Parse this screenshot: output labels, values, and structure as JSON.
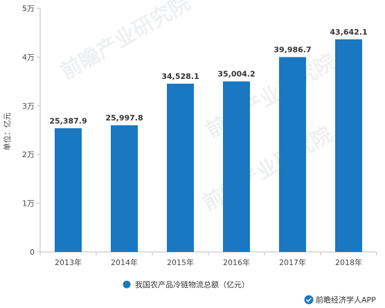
{
  "chart_data": {
    "type": "bar",
    "categories": [
      "2013年",
      "2014年",
      "2015年",
      "2016年",
      "2017年",
      "2018年"
    ],
    "values": [
      25387.9,
      25997.8,
      34528.1,
      35004.2,
      39986.7,
      43642.1
    ],
    "value_labels": [
      "25,387.9",
      "25,997.8",
      "34,528.1",
      "35,004.2",
      "39,986.7",
      "43,642.1"
    ],
    "y_ticks": [
      0,
      10000,
      20000,
      30000,
      40000,
      50000
    ],
    "y_tick_labels": [
      "0",
      "1万",
      "2万",
      "3万",
      "4万",
      "5万"
    ],
    "ylim": [
      0,
      50000
    ],
    "ylabel": "单位：亿元",
    "xlabel": "",
    "grid": false,
    "legend_position": "bottom",
    "series": [
      {
        "name": "我国农产品冷链物流总额（亿元）",
        "color": "#1a78c2"
      }
    ]
  },
  "watermark": {
    "brand": "前瞻产业研究院",
    "logo_icon": "qianzhan-logo-icon"
  },
  "footer": {
    "brand_label": "前瞻经济学人APP",
    "brand_icon": "qianzhan-app-icon",
    "brand_icon_color": "#1a78c2"
  },
  "colors": {
    "axis": "#bdbdbd",
    "bar": "#1a78c2"
  }
}
